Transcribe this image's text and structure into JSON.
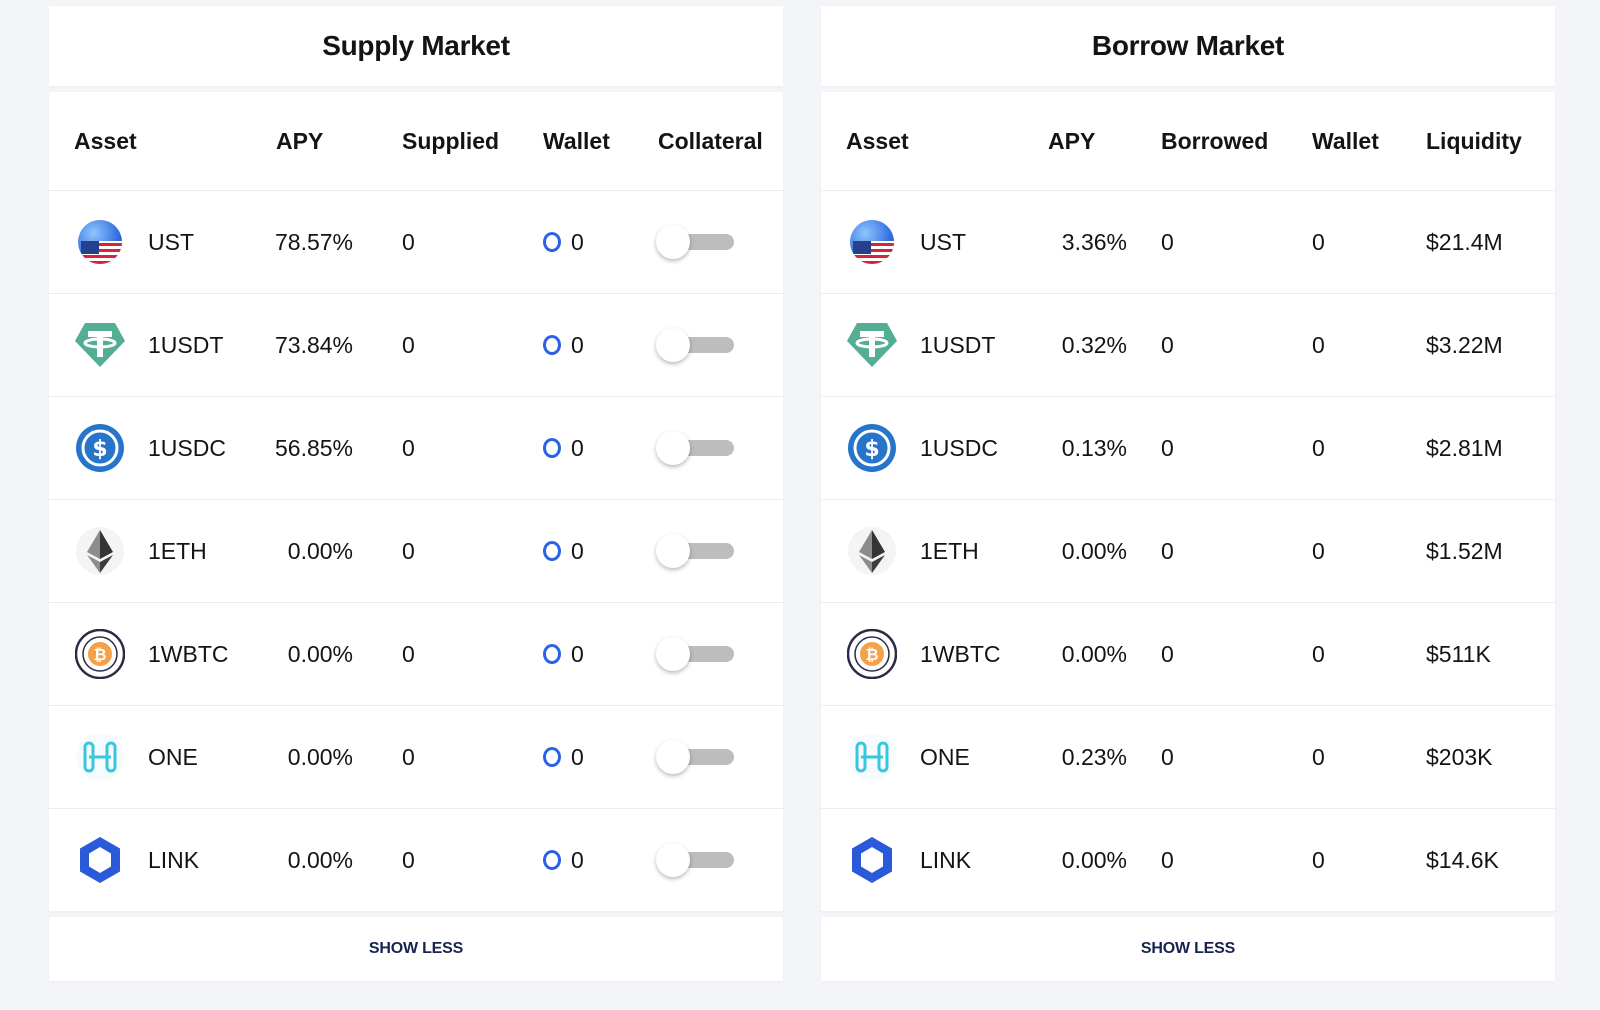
{
  "supply": {
    "title": "Supply Market",
    "headers": {
      "asset": "Asset",
      "apy": "APY",
      "amount": "Supplied",
      "wallet": "Wallet",
      "collateral": "Collateral"
    },
    "rows": [
      {
        "icon": "ust-icon",
        "asset": "UST",
        "apy": "78.57%",
        "supplied": "0",
        "wallet": "0"
      },
      {
        "icon": "usdt-icon",
        "asset": "1USDT",
        "apy": "73.84%",
        "supplied": "0",
        "wallet": "0"
      },
      {
        "icon": "usdc-icon",
        "asset": "1USDC",
        "apy": "56.85%",
        "supplied": "0",
        "wallet": "0"
      },
      {
        "icon": "eth-icon",
        "asset": "1ETH",
        "apy": "0.00%",
        "supplied": "0",
        "wallet": "0"
      },
      {
        "icon": "wbtc-icon",
        "asset": "1WBTC",
        "apy": "0.00%",
        "supplied": "0",
        "wallet": "0"
      },
      {
        "icon": "one-icon",
        "asset": "ONE",
        "apy": "0.00%",
        "supplied": "0",
        "wallet": "0"
      },
      {
        "icon": "link-icon",
        "asset": "LINK",
        "apy": "0.00%",
        "supplied": "0",
        "wallet": "0"
      }
    ],
    "show_less": "SHOW LESS"
  },
  "borrow": {
    "title": "Borrow Market",
    "headers": {
      "asset": "Asset",
      "apy": "APY",
      "amount": "Borrowed",
      "wallet": "Wallet",
      "liquidity": "Liquidity"
    },
    "rows": [
      {
        "icon": "ust-icon",
        "asset": "UST",
        "apy": "3.36%",
        "borrowed": "0",
        "wallet": "0",
        "liquidity": "$21.4M"
      },
      {
        "icon": "usdt-icon",
        "asset": "1USDT",
        "apy": "0.32%",
        "borrowed": "0",
        "wallet": "0",
        "liquidity": "$3.22M"
      },
      {
        "icon": "usdc-icon",
        "asset": "1USDC",
        "apy": "0.13%",
        "borrowed": "0",
        "wallet": "0",
        "liquidity": "$2.81M"
      },
      {
        "icon": "eth-icon",
        "asset": "1ETH",
        "apy": "0.00%",
        "borrowed": "0",
        "wallet": "0",
        "liquidity": "$1.52M"
      },
      {
        "icon": "wbtc-icon",
        "asset": "1WBTC",
        "apy": "0.00%",
        "borrowed": "0",
        "wallet": "0",
        "liquidity": "$511K"
      },
      {
        "icon": "one-icon",
        "asset": "ONE",
        "apy": "0.23%",
        "borrowed": "0",
        "wallet": "0",
        "liquidity": "$203K"
      },
      {
        "icon": "link-icon",
        "asset": "LINK",
        "apy": "0.00%",
        "borrowed": "0",
        "wallet": "0",
        "liquidity": "$14.6K"
      }
    ],
    "show_less": "SHOW LESS"
  },
  "colors": {
    "wallet_ring": "#2a62e6",
    "show_less_text": "#17244f",
    "toggle_track": "#bdbdbd"
  }
}
